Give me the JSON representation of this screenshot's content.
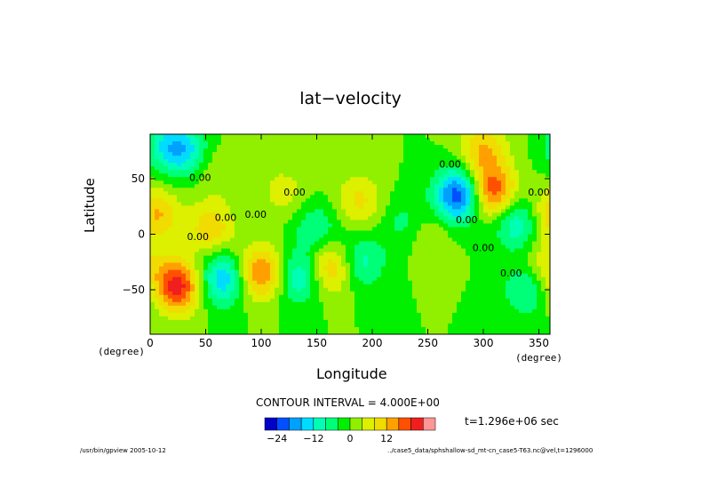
{
  "chart_data": {
    "type": "heatmap",
    "title": "lat−velocity",
    "xlabel": "Longitude",
    "ylabel": "Latitude",
    "x_unit": "(degree)",
    "y_unit": "(degree)",
    "xlim": [
      0,
      360
    ],
    "ylim": [
      -90,
      90
    ],
    "x_ticks": [
      "0",
      "50",
      "100",
      "150",
      "200",
      "250",
      "300",
      "350"
    ],
    "y_ticks": [
      "50",
      "0",
      "−50"
    ],
    "contour_interval_text": "CONTOUR INTERVAL = 4.000E+00",
    "contour_labels": [
      "0.00",
      "0.00",
      "0.00",
      "0.00",
      "0.00",
      "0.00",
      "0.00",
      "0.00",
      "0.00",
      "0.00"
    ],
    "colorbar": {
      "ticks": [
        "−24",
        "−12",
        "0",
        "12"
      ],
      "colors": [
        "#0000c8",
        "#0050ff",
        "#00a0ff",
        "#00dcff",
        "#00ffb4",
        "#00ff78",
        "#00f000",
        "#90f000",
        "#dcf000",
        "#f0dc00",
        "#ffa000",
        "#ff5000",
        "#f01e1e",
        "#ff9696"
      ]
    },
    "extrema": [
      {
        "x": 25,
        "y": -47,
        "value": 22
      },
      {
        "x": 65,
        "y": -40,
        "value": -16
      },
      {
        "x": 100,
        "y": -35,
        "value": 17
      },
      {
        "x": 135,
        "y": -38,
        "value": -13
      },
      {
        "x": 162,
        "y": -30,
        "value": 14
      },
      {
        "x": 190,
        "y": -25,
        "value": -10
      },
      {
        "x": 5,
        "y": 18,
        "value": 13
      },
      {
        "x": 30,
        "y": 75,
        "value": -12
      },
      {
        "x": 55,
        "y": 5,
        "value": 11
      },
      {
        "x": 15,
        "y": 80,
        "value": -8
      },
      {
        "x": 150,
        "y": 5,
        "value": -8
      },
      {
        "x": 188,
        "y": 30,
        "value": 9
      },
      {
        "x": 120,
        "y": 38,
        "value": 6
      },
      {
        "x": 278,
        "y": 35,
        "value": -24
      },
      {
        "x": 308,
        "y": 38,
        "value": 20
      },
      {
        "x": 300,
        "y": 75,
        "value": 12
      },
      {
        "x": 330,
        "y": 10,
        "value": -12
      },
      {
        "x": 340,
        "y": -48,
        "value": -10
      },
      {
        "x": 355,
        "y": -30,
        "value": 8
      },
      {
        "x": 230,
        "y": 10,
        "value": -6
      },
      {
        "x": 250,
        "y": 0,
        "value": 5
      },
      {
        "x": 60,
        "y": 55,
        "value": 4
      }
    ],
    "time_label": "t=1.296e+06 sec"
  },
  "footer": {
    "left": "/usr/bin/gpview  2005-10-12",
    "right": "../case5_data/sphshallow-sd_mt-cn_case5-T63.nc@vel,t=1296000"
  }
}
